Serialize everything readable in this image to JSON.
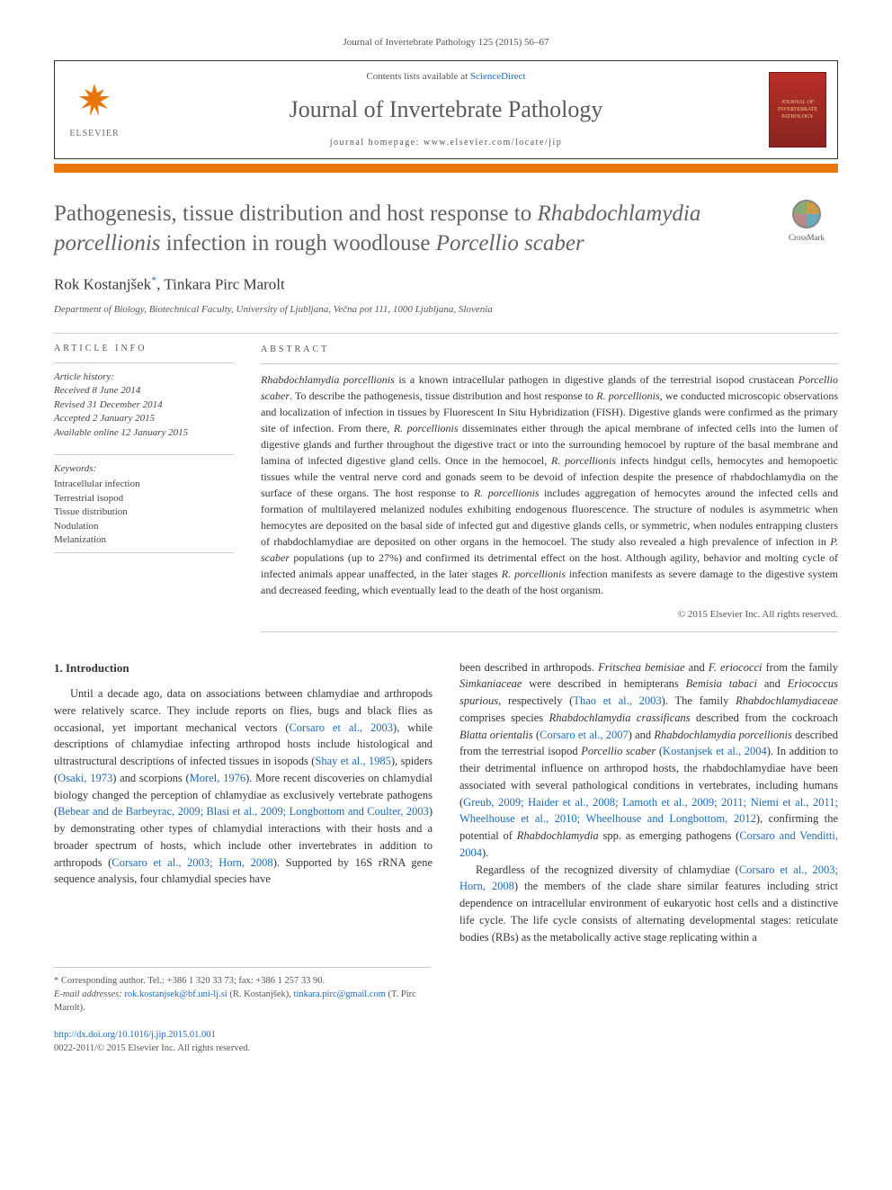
{
  "journal_ref": "Journal of Invertebrate Pathology 125 (2015) 56–67",
  "header": {
    "elsevier": "ELSEVIER",
    "contents_prefix": "Contents lists available at ",
    "contents_link": "ScienceDirect",
    "journal_name": "Journal of Invertebrate Pathology",
    "homepage_prefix": "journal homepage: ",
    "homepage_url": "www.elsevier.com/locate/jip",
    "cover_text": "JOURNAL OF INVERTEBRATE PATHOLOGY"
  },
  "title": {
    "pre": "Pathogenesis, tissue distribution and host response to ",
    "species1": "Rhabdochlamydia porcellionis",
    "mid": " infection in rough woodlouse ",
    "species2": "Porcellio scaber"
  },
  "crossmark": "CrossMark",
  "authors": {
    "a1": "Rok Kostanjšek",
    "sep": ", ",
    "a2": "Tinkara Pirc Marolt",
    "corr": "*"
  },
  "affiliation": "Department of Biology, Biotechnical Faculty, University of Ljubljana, Večna pot 111, 1000 Ljubljana, Slovenia",
  "info": {
    "heading": "ARTICLE INFO",
    "history_label": "Article history:",
    "h1": "Received 8 June 2014",
    "h2": "Revised 31 December 2014",
    "h3": "Accepted 2 January 2015",
    "h4": "Available online 12 January 2015",
    "kw_label": "Keywords:",
    "k1": "Intracellular infection",
    "k2": "Terrestrial isopod",
    "k3": "Tissue distribution",
    "k4": "Nodulation",
    "k5": "Melanization"
  },
  "abstract": {
    "heading": "ABSTRACT",
    "text_parts": [
      {
        "i": true,
        "t": "Rhabdochlamydia porcellionis"
      },
      {
        "i": false,
        "t": " is a known intracellular pathogen in digestive glands of the terrestrial isopod crustacean "
      },
      {
        "i": true,
        "t": "Porcellio scaber"
      },
      {
        "i": false,
        "t": ". To describe the pathogenesis, tissue distribution and host response to "
      },
      {
        "i": true,
        "t": "R. porcellionis"
      },
      {
        "i": false,
        "t": ", we conducted microscopic observations and localization of infection in tissues by Fluorescent In Situ Hybridization (FISH). Digestive glands were confirmed as the primary site of infection. From there, "
      },
      {
        "i": true,
        "t": "R. porcellionis"
      },
      {
        "i": false,
        "t": " disseminates either through the apical membrane of infected cells into the lumen of digestive glands and further throughout the digestive tract or into the surrounding hemocoel by rupture of the basal membrane and lamina of infected digestive gland cells. Once in the hemocoel, "
      },
      {
        "i": true,
        "t": "R. porcellionis"
      },
      {
        "i": false,
        "t": " infects hindgut cells, hemocytes and hemopoetic tissues while the ventral nerve cord and gonads seem to be devoid of infection despite the presence of rhabdochlamydia on the surface of these organs. The host response to "
      },
      {
        "i": true,
        "t": "R. porcellionis"
      },
      {
        "i": false,
        "t": " includes aggregation of hemocytes around the infected cells and formation of multilayered melanized nodules exhibiting endogenous fluorescence. The structure of nodules is asymmetric when hemocytes are deposited on the basal side of infected gut and digestive glands cells, or symmetric, when nodules entrapping clusters of rhabdochlamydiae are deposited on other organs in the hemocoel. The study also revealed a high prevalence of infection in "
      },
      {
        "i": true,
        "t": "P. scaber"
      },
      {
        "i": false,
        "t": " populations (up to 27%) and confirmed its detrimental effect on the host. Although agility, behavior and molting cycle of infected animals appear unaffected, in the later stages "
      },
      {
        "i": true,
        "t": "R. porcellionis"
      },
      {
        "i": false,
        "t": " infection manifests as severe damage to the digestive system and decreased feeding, which eventually lead to the death of the host organism."
      }
    ],
    "copyright": "© 2015 Elsevier Inc. All rights reserved."
  },
  "body": {
    "intro_heading": "1. Introduction",
    "col1_spans": [
      {
        "t": "Until a decade ago, data on associations between chlamydiae and arthropods were relatively scarce. They include reports on flies, bugs and black flies as occasional, yet important mechanical vectors ("
      },
      {
        "c": true,
        "t": "Corsaro et al., 2003"
      },
      {
        "t": "), while descriptions of chlamydiae infecting arthropod hosts include histological and ultrastructural descriptions of infected tissues in isopods ("
      },
      {
        "c": true,
        "t": "Shay et al., 1985"
      },
      {
        "t": "), spiders ("
      },
      {
        "c": true,
        "t": "Osaki, 1973"
      },
      {
        "t": ") and scorpions ("
      },
      {
        "c": true,
        "t": "Morel, 1976"
      },
      {
        "t": "). More recent discoveries on chlamydial biology changed the perception of chlamydiae as exclusively vertebrate pathogens ("
      },
      {
        "c": true,
        "t": "Bebear and de Barbeyrac, 2009; Blasi et al., 2009; Longbottom and Coulter, 2003"
      },
      {
        "t": ") by demonstrating other types of chlamydial interactions with their hosts and a broader spectrum of hosts, which include other invertebrates in addition to arthropods ("
      },
      {
        "c": true,
        "t": "Corsaro et al., 2003; Horn, 2008"
      },
      {
        "t": "). Supported by 16S rRNA gene sequence analysis, four chlamydial species have"
      }
    ],
    "col2_p1_spans": [
      {
        "t": "been described in arthropods. "
      },
      {
        "i": true,
        "t": "Fritschea bemisiae"
      },
      {
        "t": " and "
      },
      {
        "i": true,
        "t": "F. eriococci"
      },
      {
        "t": " from the family "
      },
      {
        "i": true,
        "t": "Simkaniaceae"
      },
      {
        "t": " were described in hemipterans "
      },
      {
        "i": true,
        "t": "Bemisia tabaci"
      },
      {
        "t": " and "
      },
      {
        "i": true,
        "t": "Eriococcus spurious"
      },
      {
        "t": ", respectively ("
      },
      {
        "c": true,
        "t": "Thao et al., 2003"
      },
      {
        "t": "). The family "
      },
      {
        "i": true,
        "t": "Rhabdochlamydiaceae"
      },
      {
        "t": " comprises species "
      },
      {
        "i": true,
        "t": "Rhabdochlamydia crassificans"
      },
      {
        "t": " described from the cockroach "
      },
      {
        "i": true,
        "t": "Blatta orientalis"
      },
      {
        "t": " ("
      },
      {
        "c": true,
        "t": "Corsaro et al., 2007"
      },
      {
        "t": ") and "
      },
      {
        "i": true,
        "t": "Rhabdochlamydia porcellionis"
      },
      {
        "t": " described from the terrestrial isopod "
      },
      {
        "i": true,
        "t": "Porcellio scaber"
      },
      {
        "t": " ("
      },
      {
        "c": true,
        "t": "Kostanjsek et al., 2004"
      },
      {
        "t": "). In addition to their detrimental influence on arthropod hosts, the rhabdochlamydiae have been associated with several pathological conditions in vertebrates, including humans ("
      },
      {
        "c": true,
        "t": "Greub, 2009; Haider et al., 2008; Lamoth et al., 2009; 2011; Niemi et al., 2011; Wheelhouse et al., 2010; Wheelhouse and Longbottom, 2012"
      },
      {
        "t": "), confirming the potential of "
      },
      {
        "i": true,
        "t": "Rhabdochlamydia"
      },
      {
        "t": " spp. as emerging pathogens ("
      },
      {
        "c": true,
        "t": "Corsaro and Venditti, 2004"
      },
      {
        "t": ")."
      }
    ],
    "col2_p2_spans": [
      {
        "t": "Regardless of the recognized diversity of chlamydiae ("
      },
      {
        "c": true,
        "t": "Corsaro et al., 2003; Horn, 2008"
      },
      {
        "t": ") the members of the clade share similar features including strict dependence on intracellular environment of eukaryotic host cells and a distinctive life cycle. The life cycle consists of alternating developmental stages: reticulate bodies (RBs) as the metabolically active stage replicating within a"
      }
    ]
  },
  "footnotes": {
    "corr": "* Corresponding author. Tel.: +386 1 320 33 73; fax: +386 1 257 33 90.",
    "email_label": "E-mail addresses: ",
    "e1": "rok.kostanjsek@bf.uni-lj.si",
    "e1_who": " (R. Kostanjšek), ",
    "e2": "tinkara.pirc@gmail.com",
    "e2_who": " (T. Pirc Marolt)."
  },
  "footer": {
    "doi": "http://dx.doi.org/10.1016/j.jip.2015.01.001",
    "issn": "0022-2011/© 2015 Elsevier Inc. All rights reserved."
  },
  "colors": {
    "orange": "#e8760a",
    "link": "#1a6bb8",
    "text": "#333333",
    "gray": "#555555",
    "cover_bg": "#b83028"
  }
}
